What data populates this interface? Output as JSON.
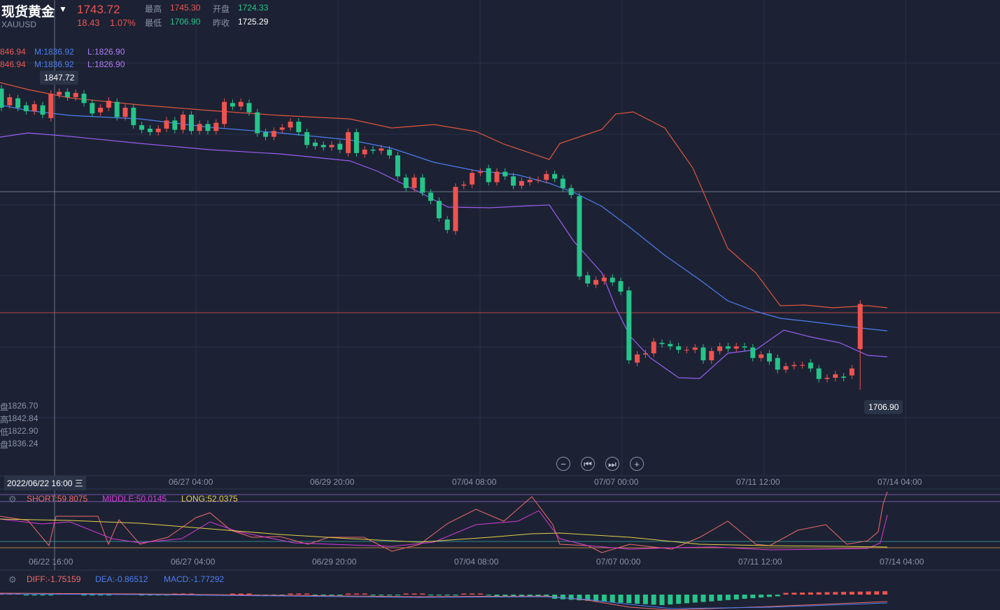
{
  "header": {
    "title": "现货黄金",
    "symbol": "XAUUSD",
    "price": "1743.72",
    "change": "18.43",
    "change_pct": "1.07%",
    "high_label": "最高",
    "high_value": "1745.30",
    "open_label": "开盘",
    "open_value": "1724.33",
    "low_label": "最低",
    "low_value": "1706.90",
    "prev_close_label": "昨收",
    "prev_close_value": "1725.29"
  },
  "boll_legend": {
    "row1": {
      "u": "846.94",
      "m": "M:1836.92",
      "l": "L:1826.90"
    },
    "row2": {
      "u": "846.94",
      "m": "M:1836.92",
      "l": "L:1826.90"
    }
  },
  "tooltips": {
    "crosshair_price": "1847.72",
    "low_price": "1706.90"
  },
  "ohlc_readout": [
    {
      "label": "盘",
      "value": "1826.70"
    },
    {
      "label": "高",
      "value": "1842.84"
    },
    {
      "label": "低",
      "value": "1822.90"
    },
    {
      "label": "盘",
      "value": "1836.24"
    }
  ],
  "crosshair_date": "2022/06/22 16:00 三",
  "x_axis_main": [
    "06/27 04:00",
    "06/29 20:00",
    "07/04 08:00",
    "07/07 00:00",
    "07/11 12:00",
    "07/14 04:00"
  ],
  "x_axis_sub": [
    "06/22 16:00",
    "06/27 04:00",
    "06/29 20:00",
    "07/04 08:00",
    "07/07 00:00",
    "07/11 12:00",
    "07/14 04:00"
  ],
  "rsi_legend": {
    "short": "SHORT:59.8075",
    "middle": "MIDDLE:50.0145",
    "long": "LONG:52.0375"
  },
  "macd_legend": {
    "diff": "DIFF:-1.75159",
    "dea": "DEA:-0.86512",
    "macd": "MACD:-1.77292"
  },
  "controls": {
    "zoom_out": "−",
    "prev": "⏮",
    "next": "⏭",
    "zoom_in": "+"
  },
  "colors": {
    "up": "#ef5350",
    "down": "#26c48a",
    "upper": "#e0553e",
    "mid": "#4d7ef2",
    "lower": "#9b5cf0",
    "bg": "#1c2233"
  },
  "chart_data": {
    "type": "candlestick",
    "symbol": "XAUUSD",
    "indicators": [
      "BOLL",
      "RSI",
      "MACD"
    ],
    "candles_approx": [
      {
        "o": 1836.2,
        "c": 1828.0
      },
      {
        "o": 1829.0,
        "c": 1832.5
      },
      {
        "o": 1832.0,
        "c": 1828.0
      },
      {
        "o": 1829.0,
        "c": 1826.5
      },
      {
        "o": 1826.5,
        "c": 1829.5
      },
      {
        "o": 1829.0,
        "c": 1825.0
      },
      {
        "o": 1823.5,
        "c": 1834.0
      },
      {
        "o": 1833.5,
        "c": 1834.8
      },
      {
        "o": 1834.8,
        "c": 1832.5
      },
      {
        "o": 1832.5,
        "c": 1834.3
      },
      {
        "o": 1834.0,
        "c": 1830.0
      },
      {
        "o": 1830.0,
        "c": 1825.5
      },
      {
        "o": 1826.0,
        "c": 1828.0
      },
      {
        "o": 1828.0,
        "c": 1831.0
      },
      {
        "o": 1830.5,
        "c": 1824.0
      },
      {
        "o": 1824.0,
        "c": 1828.0
      },
      {
        "o": 1828.0,
        "c": 1820.5
      },
      {
        "o": 1820.5,
        "c": 1818.5
      },
      {
        "o": 1819.0,
        "c": 1817.5
      },
      {
        "o": 1817.5,
        "c": 1819.0
      },
      {
        "o": 1819.0,
        "c": 1822.5
      },
      {
        "o": 1822.5,
        "c": 1818.5
      },
      {
        "o": 1818.5,
        "c": 1825.0
      },
      {
        "o": 1825.0,
        "c": 1818.0
      },
      {
        "o": 1818.0,
        "c": 1821.0
      },
      {
        "o": 1821.0,
        "c": 1818.0
      },
      {
        "o": 1818.0,
        "c": 1821.5
      },
      {
        "o": 1821.0,
        "c": 1830.5
      },
      {
        "o": 1830.0,
        "c": 1828.5
      },
      {
        "o": 1828.5,
        "c": 1830.5
      },
      {
        "o": 1830.0,
        "c": 1826.0
      },
      {
        "o": 1826.0,
        "c": 1817.0
      },
      {
        "o": 1817.5,
        "c": 1815.5
      },
      {
        "o": 1815.5,
        "c": 1818.0
      },
      {
        "o": 1818.5,
        "c": 1819.5
      },
      {
        "o": 1819.5,
        "c": 1822.0
      },
      {
        "o": 1822.0,
        "c": 1817.5
      },
      {
        "o": 1817.5,
        "c": 1812.0
      },
      {
        "o": 1813.0,
        "c": 1811.5
      },
      {
        "o": 1812.0,
        "c": 1811.0
      },
      {
        "o": 1811.0,
        "c": 1812.0
      },
      {
        "o": 1812.5,
        "c": 1810.0
      },
      {
        "o": 1808.5,
        "c": 1817.5
      },
      {
        "o": 1817.5,
        "c": 1808.5
      },
      {
        "o": 1808.0,
        "c": 1810.0
      },
      {
        "o": 1810.0,
        "c": 1809.5
      },
      {
        "o": 1809.5,
        "c": 1810.5
      },
      {
        "o": 1810.0,
        "c": 1807.5
      },
      {
        "o": 1807.5,
        "c": 1798.5
      },
      {
        "o": 1798.0,
        "c": 1793.5
      },
      {
        "o": 1793.5,
        "c": 1798.0
      },
      {
        "o": 1798.0,
        "c": 1791.5
      },
      {
        "o": 1791.5,
        "c": 1788.0
      },
      {
        "o": 1788.0,
        "c": 1780.5
      },
      {
        "o": 1780.0,
        "c": 1775.5
      },
      {
        "o": 1775.0,
        "c": 1794.0
      },
      {
        "o": 1794.5,
        "c": 1795.0
      },
      {
        "o": 1795.0,
        "c": 1800.0
      },
      {
        "o": 1800.0,
        "c": 1800.5
      },
      {
        "o": 1802.0,
        "c": 1796.0
      },
      {
        "o": 1796.0,
        "c": 1800.5
      },
      {
        "o": 1800.5,
        "c": 1798.5
      },
      {
        "o": 1798.5,
        "c": 1794.5
      },
      {
        "o": 1794.5,
        "c": 1796.5
      },
      {
        "o": 1796.0,
        "c": 1797.0
      },
      {
        "o": 1797.0,
        "c": 1797.0
      },
      {
        "o": 1797.0,
        "c": 1799.5
      },
      {
        "o": 1799.5,
        "c": 1797.5
      },
      {
        "o": 1797.5,
        "c": 1793.5
      },
      {
        "o": 1793.5,
        "c": 1790.5
      },
      {
        "o": 1790.0,
        "c": 1755.5
      },
      {
        "o": 1756.0,
        "c": 1752.5
      },
      {
        "o": 1752.0,
        "c": 1754.0
      },
      {
        "o": 1753.5,
        "c": 1755.0
      },
      {
        "o": 1755.0,
        "c": 1753.0
      },
      {
        "o": 1753.5,
        "c": 1749.0
      },
      {
        "o": 1749.5,
        "c": 1719.5
      },
      {
        "o": 1718.5,
        "c": 1722.0
      },
      {
        "o": 1722.0,
        "c": 1722.5
      },
      {
        "o": 1722.5,
        "c": 1727.5
      },
      {
        "o": 1727.0,
        "c": 1726.5
      },
      {
        "o": 1726.5,
        "c": 1725.5
      },
      {
        "o": 1725.5,
        "c": 1724.0
      },
      {
        "o": 1724.0,
        "c": 1724.0
      },
      {
        "o": 1724.0,
        "c": 1725.0
      },
      {
        "o": 1725.0,
        "c": 1719.5
      },
      {
        "o": 1719.5,
        "c": 1723.5
      },
      {
        "o": 1723.5,
        "c": 1725.5
      },
      {
        "o": 1725.5,
        "c": 1724.5
      },
      {
        "o": 1724.5,
        "c": 1725.5
      },
      {
        "o": 1725.5,
        "c": 1725.0
      },
      {
        "o": 1725.0,
        "c": 1720.5
      },
      {
        "o": 1720.5,
        "c": 1722.0
      },
      {
        "o": 1722.5,
        "c": 1719.0
      },
      {
        "o": 1720.5,
        "c": 1715.5
      },
      {
        "o": 1715.5,
        "c": 1717.0
      },
      {
        "o": 1717.0,
        "c": 1717.5
      },
      {
        "o": 1717.5,
        "c": 1717.5
      },
      {
        "o": 1718.5,
        "c": 1716.0
      },
      {
        "o": 1716.0,
        "c": 1711.5
      },
      {
        "o": 1711.5,
        "c": 1712.0
      },
      {
        "o": 1712.0,
        "c": 1713.5
      },
      {
        "o": 1712.5,
        "c": 1712.0
      },
      {
        "o": 1713.0,
        "c": 1716.0
      },
      {
        "o": 1724.33,
        "c": 1743.72,
        "h": 1745.3,
        "l": 1706.9
      }
    ]
  }
}
